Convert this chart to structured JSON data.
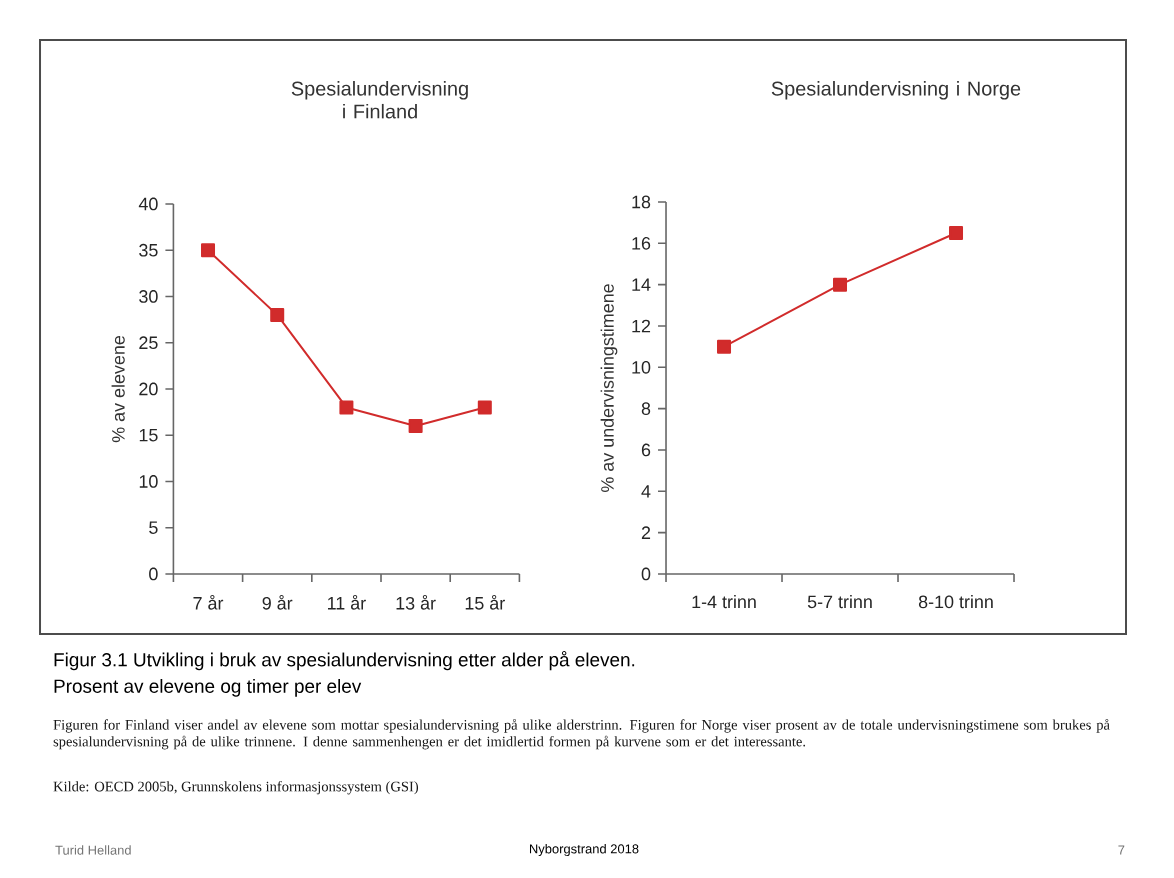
{
  "chart_data": [
    {
      "type": "line",
      "title": "Spesialundervisning i Finland",
      "ylabel": "% av elevene",
      "categories": [
        "7 år",
        "9 år",
        "11 år",
        "13 år",
        "15 år"
      ],
      "marker": "square",
      "series": [
        {
          "color": "#d12b2b",
          "values": [
            35,
            28,
            18,
            16,
            18
          ]
        }
      ],
      "ylim": [
        0,
        40
      ],
      "yticks": [
        0,
        5,
        10,
        15,
        20,
        25,
        30,
        35,
        40
      ]
    },
    {
      "type": "line",
      "title": "Spesialundervisning i Norge",
      "ylabel": "% av undervisningstimene",
      "categories": [
        "1-4 trinn",
        "5-7 trinn",
        "8-10 trinn"
      ],
      "marker": "square",
      "series": [
        {
          "color": "#d12b2b",
          "values": [
            11,
            14,
            16.5
          ]
        }
      ],
      "ylim": [
        0,
        18
      ],
      "yticks": [
        0,
        2,
        4,
        6,
        8,
        10,
        12,
        14,
        16,
        18
      ],
      "annotations": [
        "Figur 3.1  Utvikling i bruk av spesialundervisning etter alder på eleven.",
        "Prosent av elevene og timer per elev",
        "Figuren for Finland viser andel av elevene som mottar spesialundervisning på ulike alderstrinn. Figuren for Norge viser prosent av de totale undervisningstimene som brukes på spesialundervisning på de ulike trinnene. I denne sammenhengen er det imidlertid formen på kurvene som er det interessante.",
        "Kilde: OECD 2005b, Grunnskolens informasjonssystem (GSI)",
        "Turid Helland",
        "Nyborgstrand 2018",
        "7"
      ]
    }
  ]
}
